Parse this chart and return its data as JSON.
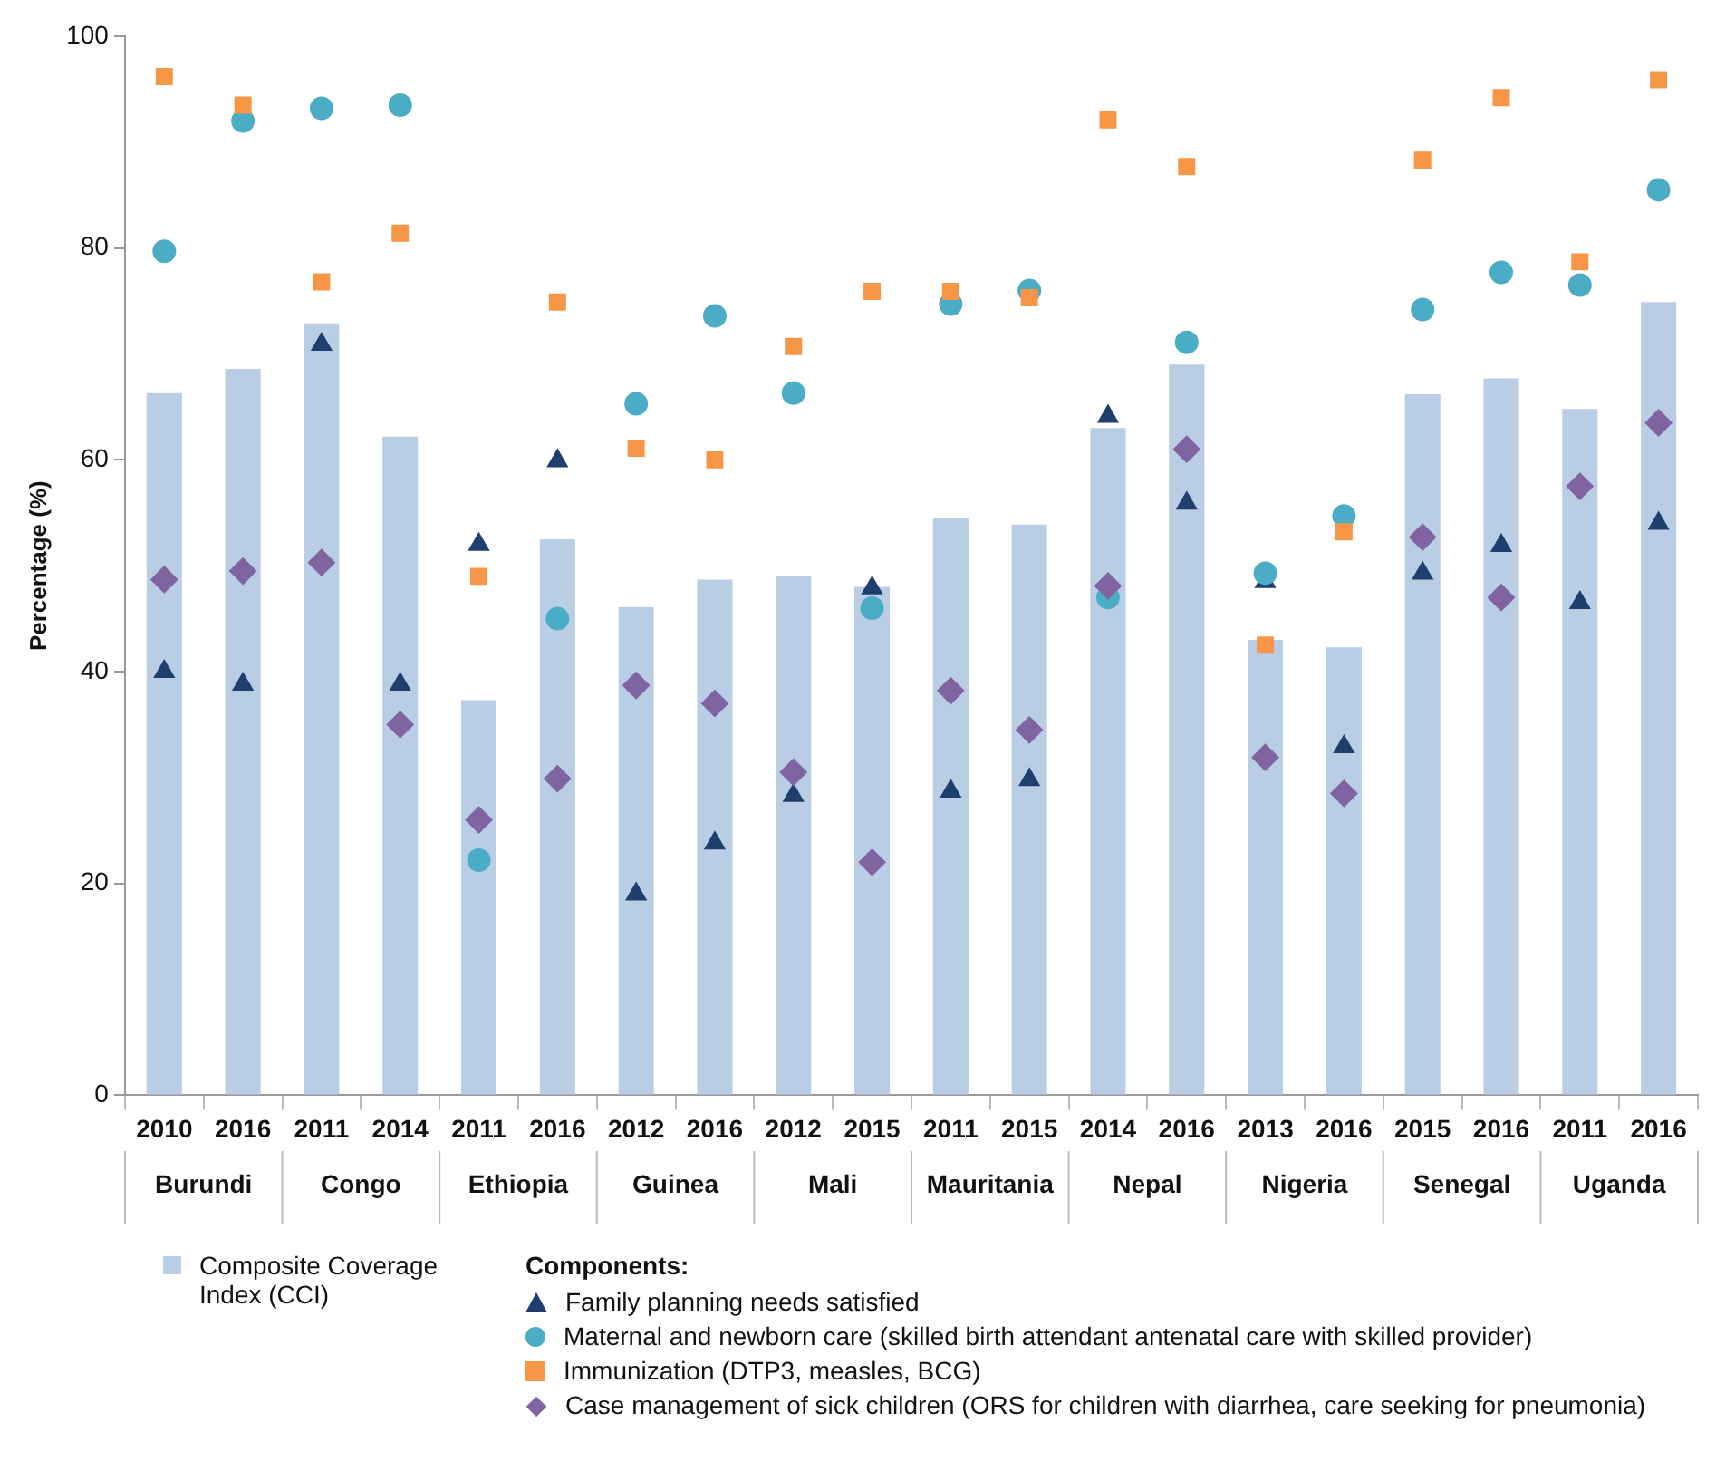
{
  "chart_data": {
    "type": "bar",
    "ylabel": "Percentage (%)",
    "legend_title": "Components:",
    "legend": "bottom",
    "grid": false,
    "categories": [
      "2010",
      "2016",
      "2011",
      "2014",
      "2011",
      "2016",
      "2012",
      "2016",
      "2012",
      "2015",
      "2011",
      "2015",
      "2014",
      "2016",
      "2013",
      "2016",
      "2015",
      "2016",
      "2011",
      "2016"
    ],
    "annotations": [
      "Burundi",
      "Congo",
      "Ethiopia",
      "Guinea",
      "Mali",
      "Mauritania",
      "Nepal",
      "Nigeria",
      "Senegal",
      "Uganda"
    ],
    "ylim": [
      0,
      100
    ],
    "yticks": [
      0,
      20,
      40,
      60,
      80,
      100
    ],
    "series": [
      {
        "name": "Composite Coverage Index (CCI)",
        "color": "#b9cde5",
        "values": [
          66.3,
          68.6,
          72.9,
          62.2,
          37.3,
          52.5,
          46.1,
          48.7,
          49,
          48,
          54.5,
          53.9,
          63,
          69,
          43,
          42.3,
          66.2,
          67.7,
          64.8,
          74.9
        ]
      },
      {
        "name": "Family planning needs satisfied",
        "type": "scatter",
        "marker": "triangle",
        "color": "#1f3f6e",
        "values": [
          40,
          38.8,
          70.9,
          38.8,
          52,
          59.9,
          19,
          23.8,
          28.3,
          47.9,
          28.7,
          29.8,
          64.1,
          55.9,
          48.5,
          32.9,
          49.3,
          51.9,
          46.5,
          54
        ]
      },
      {
        "name": "Maternal and newborn care (skilled birth attendant antenatal care with skilled provider)",
        "type": "scatter",
        "marker": "circle",
        "color": "#4bacc6",
        "values": [
          79.7,
          92,
          93.2,
          93.5,
          22.2,
          45,
          65.3,
          73.6,
          66.3,
          46,
          74.7,
          76,
          47,
          71.1,
          49.3,
          54.7,
          74.2,
          77.7,
          76.5,
          85.5
        ]
      },
      {
        "name": "Immunization  (DTP3, measles, BCG)",
        "type": "scatter",
        "marker": "square",
        "color": "#f79646",
        "values": [
          96.2,
          93.5,
          76.8,
          81.4,
          49,
          74.9,
          61.1,
          60,
          70.7,
          75.9,
          75.9,
          75.3,
          92.1,
          87.7,
          42.5,
          53.2,
          88.3,
          94.2,
          78.7,
          95.9
        ]
      },
      {
        "name": "Case management of sick children (ORS for children with diarrhea, care seeking for pneumonia)",
        "type": "scatter",
        "marker": "diamond",
        "color": "#8064a2",
        "values": [
          48.7,
          49.5,
          50.3,
          35,
          26,
          29.9,
          38.7,
          37,
          30.5,
          22,
          38.2,
          34.5,
          48.1,
          61,
          31.9,
          28.5,
          52.7,
          47,
          57.5,
          63.5
        ]
      }
    ]
  }
}
